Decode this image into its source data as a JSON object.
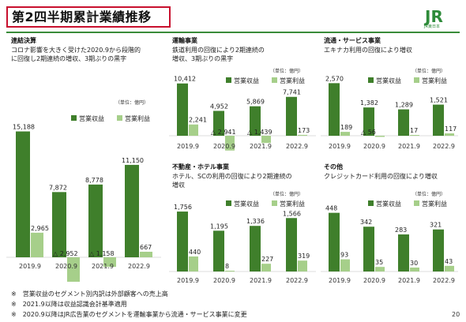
{
  "slide": {
    "title": "第2四半期累計業績推移",
    "logo_text": "JR",
    "logo_sub": "JR東日本",
    "page_number": "20",
    "unit_label": "（単位：億円）",
    "legend": {
      "revenue": "営業収益",
      "profit": "営業利益"
    },
    "colors": {
      "revenue": "#3f7f2b",
      "profit": "#a6cf8a",
      "accent": "#c8102e"
    },
    "notes": [
      "※　営業収益のセグメント別内訳は外部顧客への売上高",
      "※　2021.9以降は収益認識会計基準適用",
      "※　2020.9以降はJR広告業のセグメントを運輸事業から流通・サービス事業に変更"
    ]
  },
  "panels": [
    {
      "id": "consolidated",
      "title": "連結決算",
      "desc": [
        "コロナ影響を大きく受けた2020.9から段階的",
        "に回復し2期連続の増収、3期ぶりの黒字"
      ],
      "chart_data": {
        "type": "bar",
        "categories": [
          "2019.9",
          "2020.9",
          "2021.9",
          "2022.9"
        ],
        "series": [
          {
            "name": "営業収益",
            "values": [
              15188,
              7872,
              8778,
              11150
            ],
            "labels": [
              "15,188",
              "7,872",
              "8,778",
              "11,150"
            ]
          },
          {
            "name": "営業利益",
            "values": [
              2965,
              -2952,
              -1158,
              667
            ],
            "labels": [
              "2,965",
              "△ 2,952",
              "△ 1,158",
              "667"
            ]
          }
        ],
        "ylim": [
          -3000,
          16000
        ]
      }
    },
    {
      "id": "transport",
      "title": "運輸事業",
      "desc": [
        "鉄道利用の回復により2期連続の",
        "増収、3期ぶりの黒字"
      ],
      "chart_data": {
        "type": "bar",
        "categories": [
          "2019.9",
          "2020.9",
          "2021.9",
          "2022.9"
        ],
        "series": [
          {
            "name": "営業収益",
            "values": [
              10412,
              4952,
              5869,
              7741
            ],
            "labels": [
              "10,412",
              "4,952",
              "5,869",
              "7,741"
            ]
          },
          {
            "name": "営業利益",
            "values": [
              2241,
              -2941,
              -1439,
              173
            ],
            "labels": [
              "2,241",
              "△ 2,941",
              "△ 1,439",
              "173"
            ]
          }
        ],
        "ylim": [
          -3000,
          11000
        ]
      }
    },
    {
      "id": "retail",
      "title": "流通・サービス事業",
      "desc": [
        "エキナカ利用の回復により増収"
      ],
      "chart_data": {
        "type": "bar",
        "categories": [
          "2019.9",
          "2020.9",
          "2021.9",
          "2022.9"
        ],
        "series": [
          {
            "name": "営業収益",
            "values": [
              2570,
              1382,
              1289,
              1521
            ],
            "labels": [
              "2,570",
              "1,382",
              "1,289",
              "1,521"
            ]
          },
          {
            "name": "営業利益",
            "values": [
              189,
              -56,
              17,
              117
            ],
            "labels": [
              "189",
              "△ 56",
              "17",
              "117"
            ]
          }
        ],
        "ylim": [
          -100,
          2700
        ]
      }
    },
    {
      "id": "realestate",
      "title": "不動産・ホテル事業",
      "desc": [
        "ホテル、SCの利用の回復により2期連続の",
        "増収"
      ],
      "chart_data": {
        "type": "bar",
        "categories": [
          "2019.9",
          "2020.9",
          "2021.9",
          "2022.9"
        ],
        "series": [
          {
            "name": "営業収益",
            "values": [
              1756,
              1195,
              1336,
              1566
            ],
            "labels": [
              "1,756",
              "1,195",
              "1,336",
              "1,566"
            ]
          },
          {
            "name": "営業利益",
            "values": [
              440,
              8,
              227,
              319
            ],
            "labels": [
              "440",
              "8",
              "227",
              "319"
            ]
          }
        ],
        "ylim": [
          0,
          1850
        ]
      }
    },
    {
      "id": "others",
      "title": "その他",
      "desc": [
        "クレジットカード利用の回復により増収"
      ],
      "chart_data": {
        "type": "bar",
        "categories": [
          "2019.9",
          "2020.9",
          "2021.9",
          "2022.9"
        ],
        "series": [
          {
            "name": "営業収益",
            "values": [
              448,
              342,
              283,
              321
            ],
            "labels": [
              "448",
              "342",
              "283",
              "321"
            ]
          },
          {
            "name": "営業利益",
            "values": [
              93,
              35,
              30,
              43
            ],
            "labels": [
              "93",
              "35",
              "30",
              "43"
            ]
          }
        ],
        "ylim": [
          0,
          470
        ]
      }
    }
  ]
}
